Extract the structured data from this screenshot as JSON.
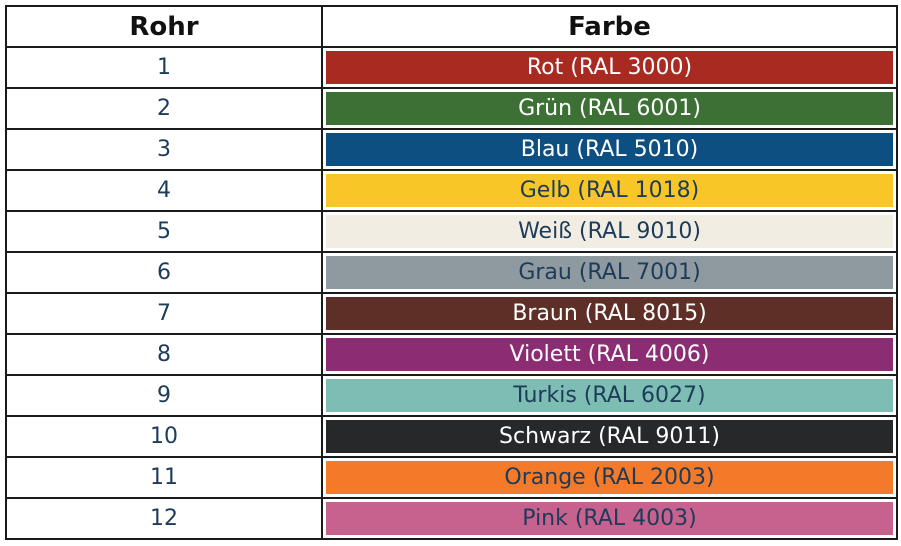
{
  "table": {
    "headers": {
      "rohr": "Rohr",
      "farbe": "Farbe"
    },
    "rows": [
      {
        "num": "1",
        "label": "Rot (RAL 3000)",
        "bg": "#a82a20",
        "fg": "#ffffff"
      },
      {
        "num": "2",
        "label": "Grün (RAL 6001)",
        "bg": "#3d7034",
        "fg": "#ffffff"
      },
      {
        "num": "3",
        "label": "Blau (RAL 5010)",
        "bg": "#0e4f82",
        "fg": "#ffffff"
      },
      {
        "num": "4",
        "label": "Gelb (RAL 1018)",
        "bg": "#f8c627",
        "fg": "#1d3b5a"
      },
      {
        "num": "5",
        "label": "Weiß (RAL 9010)",
        "bg": "#f2ede3",
        "fg": "#1d3b5a"
      },
      {
        "num": "6",
        "label": "Grau (RAL 7001)",
        "bg": "#8e9a9f",
        "fg": "#1d3b5a"
      },
      {
        "num": "7",
        "label": "Braun (RAL 8015)",
        "bg": "#5e2f27",
        "fg": "#ffffff"
      },
      {
        "num": "8",
        "label": "Violett (RAL 4006)",
        "bg": "#8c2d74",
        "fg": "#ffffff"
      },
      {
        "num": "9",
        "label": "Turkis (RAL 6027)",
        "bg": "#7dbdb4",
        "fg": "#1d3b5a"
      },
      {
        "num": "10",
        "label": "Schwarz (RAL 9011)",
        "bg": "#26282a",
        "fg": "#ffffff"
      },
      {
        "num": "11",
        "label": "Orange (RAL 2003)",
        "bg": "#f47a29",
        "fg": "#1d3b5a"
      },
      {
        "num": "12",
        "label": "Pink (RAL 4003)",
        "bg": "#c7618e",
        "fg": "#1d3b5a"
      }
    ]
  }
}
